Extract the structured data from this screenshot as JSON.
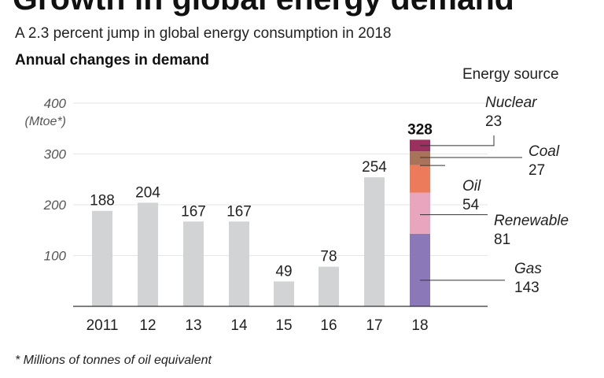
{
  "headline": "Growth in global energy demand",
  "subtitle": "A 2.3 percent jump in global energy consumption in 2018",
  "section_label": "Annual changes in demand",
  "footnote": "* Millions of tonnes of oil equivalent",
  "colors": {
    "bar": "#d1d3d4",
    "gridline": "#e6e6e6",
    "axis": "#333333",
    "leader": "#333333"
  },
  "chart_data": {
    "type": "bar",
    "title": "Annual changes in demand",
    "ylabel": "(Mtoe*)",
    "ylim": [
      0,
      400
    ],
    "yticks": [
      100,
      200,
      300,
      400
    ],
    "grid": true,
    "categories": [
      "2011",
      "12",
      "13",
      "14",
      "15",
      "16",
      "17",
      "18"
    ],
    "values": [
      188,
      204,
      167,
      167,
      49,
      78,
      254,
      328
    ],
    "total_2018": 328,
    "legend_title": "Energy source",
    "stack_category": "18",
    "stack": [
      {
        "name": "Gas",
        "value": 143,
        "color": "#8b78b8"
      },
      {
        "name": "Renewable",
        "value": 81,
        "color": "#e8a5bd"
      },
      {
        "name": "Oil",
        "value": 54,
        "color": "#eb7b5b"
      },
      {
        "name": "Coal",
        "value": 27,
        "color": "#a8735a"
      },
      {
        "name": "Nuclear",
        "value": 23,
        "color": "#9b2f5e"
      }
    ]
  }
}
